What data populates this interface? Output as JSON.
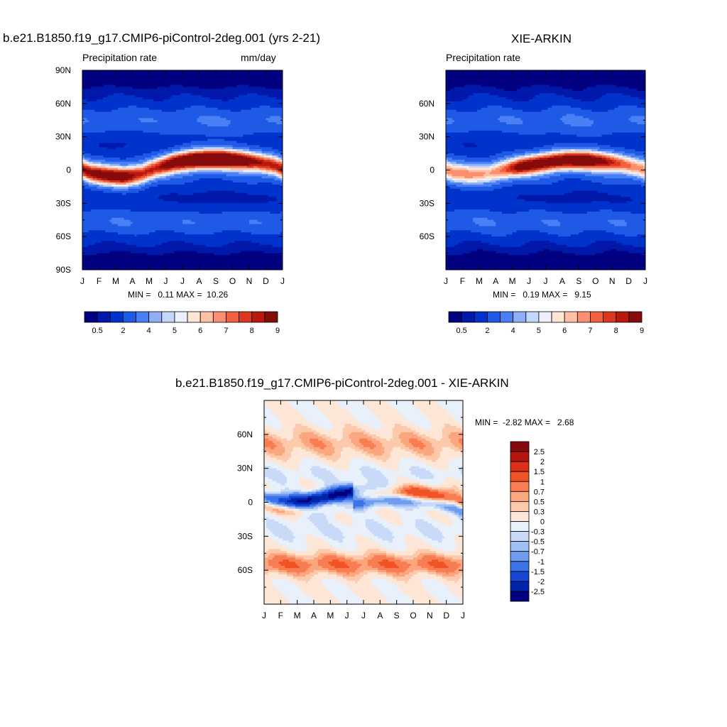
{
  "panel_left": {
    "title": "b.e21.B1850.f19_g17.CMIP6-piControl-2deg.001 (yrs 2-21)",
    "left_string": "Precipitation rate",
    "right_string": "mm/day",
    "stats": "MIN =   0.11 MAX =  10.26"
  },
  "panel_right": {
    "title": "XIE-ARKIN",
    "left_string": "Precipitation rate",
    "right_string": "",
    "stats": "MIN =   0.19 MAX =   9.15"
  },
  "panel_diff": {
    "title": "b.e21.B1850.f19_g17.CMIP6-piControl-2deg.001 - XIE-ARKIN",
    "stats": "MIN =  -2.82 MAX =   2.68"
  },
  "chart_data": [
    {
      "type": "heatmap",
      "title": "b.e21.B1850.f19_g17.CMIP6-piControl-2deg.001 (yrs 2-21)",
      "x_ticks": [
        "J",
        "F",
        "M",
        "A",
        "M",
        "J",
        "J",
        "A",
        "S",
        "O",
        "N",
        "D",
        "J"
      ],
      "y_ticks": [
        "90N",
        "60N",
        "30N",
        "0",
        "30S",
        "60S",
        "90S"
      ],
      "ylim": [
        -90,
        90
      ],
      "colorbar_levels": [
        0.5,
        1,
        2,
        3,
        4,
        4.5,
        5,
        5.5,
        6,
        6.5,
        7,
        7.5,
        8,
        8.5,
        9
      ],
      "colorbar_labels": [
        "0.5",
        "2",
        "4",
        "5",
        "6",
        "7",
        "8",
        "9"
      ],
      "field": {
        "min": 0.11,
        "max": 10.26,
        "itcz_lat_by_month": [
          -3,
          -5,
          -6,
          -4,
          2,
          7,
          9,
          10,
          10,
          9,
          7,
          4
        ],
        "itcz_peak_by_month": [
          7.8,
          8.2,
          8.6,
          7.4,
          7.0,
          8.8,
          10.2,
          10.2,
          10.0,
          9.2,
          8.0,
          7.4
        ]
      }
    },
    {
      "type": "heatmap",
      "title": "XIE-ARKIN",
      "x_ticks": [
        "J",
        "F",
        "M",
        "A",
        "M",
        "J",
        "J",
        "A",
        "S",
        "O",
        "N",
        "D",
        "J"
      ],
      "y_ticks": [
        "60N",
        "30N",
        "0",
        "30S",
        "60S"
      ],
      "ylim": [
        -90,
        90
      ],
      "colorbar_levels": [
        0.5,
        1,
        2,
        3,
        4,
        4.5,
        5,
        5.5,
        6,
        6.5,
        7,
        7.5,
        8,
        8.5,
        9
      ],
      "colorbar_labels": [
        "0.5",
        "2",
        "4",
        "5",
        "6",
        "7",
        "8",
        "9"
      ],
      "field": {
        "min": 0.19,
        "max": 9.15,
        "itcz_lat_by_month": [
          -3,
          -4,
          -3,
          0,
          3,
          6,
          8,
          9,
          9,
          8,
          6,
          2
        ],
        "itcz_peak_by_month": [
          5.8,
          5.6,
          5.6,
          6.6,
          8.0,
          8.6,
          9.0,
          9.15,
          8.8,
          8.0,
          7.0,
          6.0
        ]
      }
    },
    {
      "type": "heatmap",
      "title": "b.e21.B1850.f19_g17.CMIP6-piControl-2deg.001 - XIE-ARKIN",
      "x_ticks": [
        "J",
        "F",
        "M",
        "A",
        "M",
        "J",
        "J",
        "A",
        "S",
        "O",
        "N",
        "D",
        "J"
      ],
      "y_ticks": [
        "60N",
        "30N",
        "0",
        "30S",
        "60S"
      ],
      "ylim": [
        -90,
        90
      ],
      "colorbar_levels": [
        -2.5,
        -2,
        -1.5,
        -1,
        -0.7,
        -0.5,
        -0.3,
        0,
        0.3,
        0.5,
        0.7,
        1,
        1.5,
        2,
        2.5
      ],
      "colorbar_labels": [
        "2.5",
        "2",
        "1.5",
        "1",
        "0.7",
        "0.5",
        "0.3",
        "0",
        "-0.3",
        "-0.5",
        "-0.7",
        "-1",
        "-1.5",
        "-2",
        "-2.5"
      ],
      "field": {
        "min": -2.82,
        "max": 2.68
      }
    }
  ],
  "colors": {
    "precip_scale": [
      "#000080",
      "#0019aa",
      "#0032cc",
      "#1e5ae6",
      "#4a80f5",
      "#8fb0f7",
      "#c4d6fb",
      "#ebf0ff",
      "#ffe5d2",
      "#ffc1a6",
      "#fc8f6f",
      "#f1603f",
      "#dc3820",
      "#b8180e",
      "#860b0b"
    ],
    "diff_scale": [
      "#86090d",
      "#b5170f",
      "#db3017",
      "#f05325",
      "#f97d52",
      "#fba67e",
      "#fcc9ab",
      "#fde6d6",
      "#e8f0fc",
      "#c8daf8",
      "#9fc0f4",
      "#6f9cef",
      "#3c73ea",
      "#1746d6",
      "#0025aa",
      "#000080"
    ]
  }
}
